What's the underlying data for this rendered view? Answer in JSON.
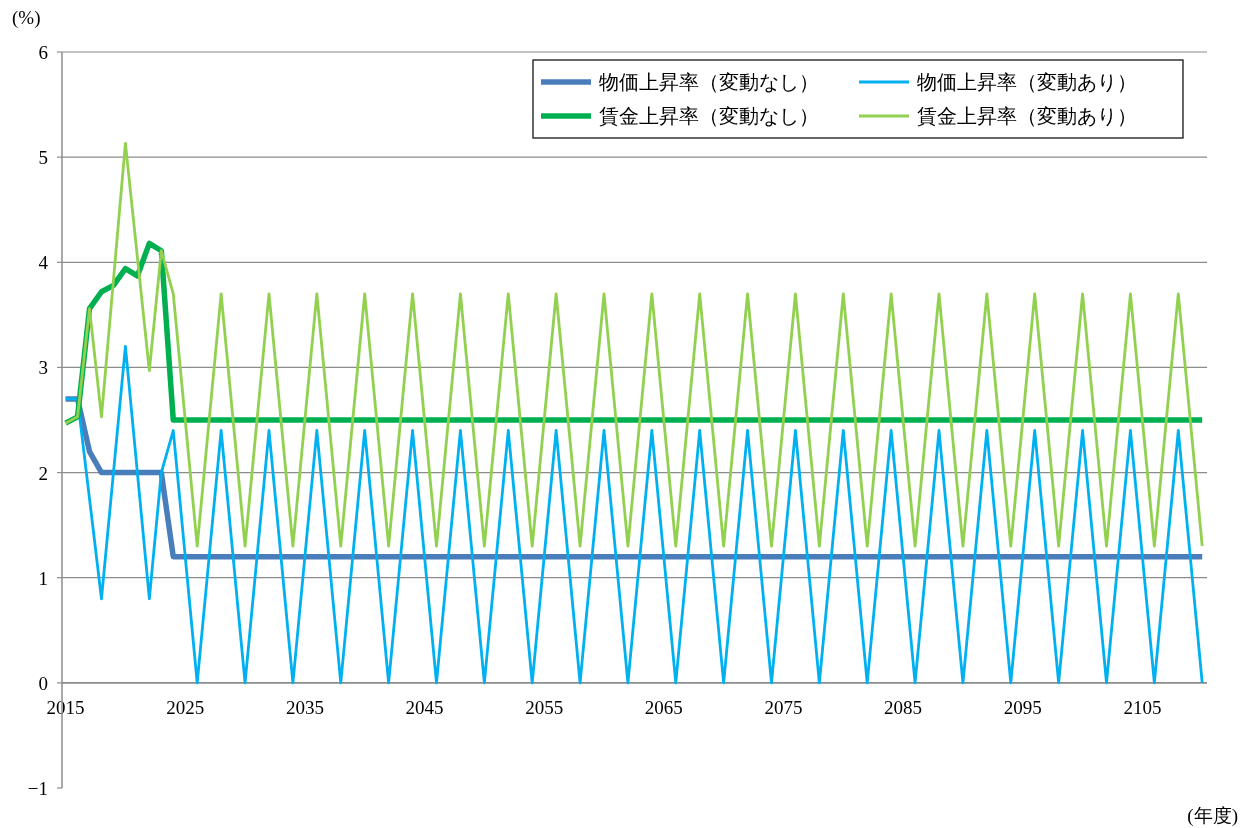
{
  "chart_data": {
    "type": "line",
    "ylabel": "(%)",
    "xlabel": "(年度)",
    "x": [
      2015,
      2016,
      2017,
      2018,
      2019,
      2020,
      2021,
      2022,
      2023,
      2024,
      2025,
      2026,
      2027,
      2028,
      2029,
      2030,
      2031,
      2032,
      2033,
      2034,
      2035,
      2036,
      2037,
      2038,
      2039,
      2040,
      2041,
      2042,
      2043,
      2044,
      2045,
      2046,
      2047,
      2048,
      2049,
      2050,
      2051,
      2052,
      2053,
      2054,
      2055,
      2056,
      2057,
      2058,
      2059,
      2060,
      2061,
      2062,
      2063,
      2064,
      2065,
      2066,
      2067,
      2068,
      2069,
      2070,
      2071,
      2072,
      2073,
      2074,
      2075,
      2076,
      2077,
      2078,
      2079,
      2080,
      2081,
      2082,
      2083,
      2084,
      2085,
      2086,
      2087,
      2088,
      2089,
      2090,
      2091,
      2092,
      2093,
      2094,
      2095,
      2096,
      2097,
      2098,
      2099,
      2100,
      2101,
      2102,
      2103,
      2104,
      2105,
      2106,
      2107,
      2108,
      2109,
      2110
    ],
    "xlim": [
      2014.7,
      2110.4
    ],
    "xticks": [
      2015,
      2025,
      2035,
      2045,
      2055,
      2065,
      2075,
      2085,
      2095,
      2105
    ],
    "ylim": [
      -1,
      6
    ],
    "yticks": [
      -1,
      0,
      1,
      2,
      3,
      4,
      5,
      6
    ],
    "grid": "y",
    "legend": "top right",
    "marker": "none",
    "line_style": "solid",
    "series": [
      {
        "name": "物価上昇率（変動なし）",
        "color": "#4a7ebb",
        "values": [
          2.7,
          2.7,
          2.2,
          2.0,
          2.0,
          2.0,
          2.0,
          2.0,
          2.0,
          1.2,
          1.2,
          1.2,
          1.2,
          1.2,
          1.2,
          1.2,
          1.2,
          1.2,
          1.2,
          1.2,
          1.2,
          1.2,
          1.2,
          1.2,
          1.2,
          1.2,
          1.2,
          1.2,
          1.2,
          1.2,
          1.2,
          1.2,
          1.2,
          1.2,
          1.2,
          1.2,
          1.2,
          1.2,
          1.2,
          1.2,
          1.2,
          1.2,
          1.2,
          1.2,
          1.2,
          1.2,
          1.2,
          1.2,
          1.2,
          1.2,
          1.2,
          1.2,
          1.2,
          1.2,
          1.2,
          1.2,
          1.2,
          1.2,
          1.2,
          1.2,
          1.2,
          1.2,
          1.2,
          1.2,
          1.2,
          1.2,
          1.2,
          1.2,
          1.2,
          1.2,
          1.2,
          1.2,
          1.2,
          1.2,
          1.2,
          1.2,
          1.2,
          1.2,
          1.2,
          1.2,
          1.2,
          1.2,
          1.2,
          1.2,
          1.2,
          1.2,
          1.2,
          1.2,
          1.2,
          1.2,
          1.2,
          1.2,
          1.2,
          1.2,
          1.2,
          1.2
        ]
      },
      {
        "name": "物価上昇率（変動あり）",
        "color": "#00b0f0",
        "values": [
          2.7,
          2.7,
          1.75,
          0.8,
          2.0,
          3.2,
          2.0,
          0.8,
          2.0,
          2.4,
          1.2,
          0,
          1.2,
          2.4,
          1.2,
          0,
          1.2,
          2.4,
          1.2,
          0,
          1.2,
          2.4,
          1.2,
          0,
          1.2,
          2.4,
          1.2,
          0,
          1.2,
          2.4,
          1.2,
          0,
          1.2,
          2.4,
          1.2,
          0,
          1.2,
          2.4,
          1.2,
          0,
          1.2,
          2.4,
          1.2,
          0,
          1.2,
          2.4,
          1.2,
          0,
          1.2,
          2.4,
          1.2,
          0,
          1.2,
          2.4,
          1.2,
          0,
          1.2,
          2.4,
          1.2,
          0,
          1.2,
          2.4,
          1.2,
          0,
          1.2,
          2.4,
          1.2,
          0,
          1.2,
          2.4,
          1.2,
          0,
          1.2,
          2.4,
          1.2,
          0,
          1.2,
          2.4,
          1.2,
          0,
          1.2,
          2.4,
          1.2,
          0,
          1.2,
          2.4,
          1.2,
          0,
          1.2,
          2.4,
          1.2,
          0,
          1.2,
          2.4,
          1.2,
          0
        ]
      },
      {
        "name": "賃金上昇率（変動なし）",
        "color": "#00b050",
        "values": [
          2.47,
          2.53,
          3.56,
          3.72,
          3.78,
          3.94,
          3.87,
          4.18,
          4.11,
          2.5,
          2.5,
          2.5,
          2.5,
          2.5,
          2.5,
          2.5,
          2.5,
          2.5,
          2.5,
          2.5,
          2.5,
          2.5,
          2.5,
          2.5,
          2.5,
          2.5,
          2.5,
          2.5,
          2.5,
          2.5,
          2.5,
          2.5,
          2.5,
          2.5,
          2.5,
          2.5,
          2.5,
          2.5,
          2.5,
          2.5,
          2.5,
          2.5,
          2.5,
          2.5,
          2.5,
          2.5,
          2.5,
          2.5,
          2.5,
          2.5,
          2.5,
          2.5,
          2.5,
          2.5,
          2.5,
          2.5,
          2.5,
          2.5,
          2.5,
          2.5,
          2.5,
          2.5,
          2.5,
          2.5,
          2.5,
          2.5,
          2.5,
          2.5,
          2.5,
          2.5,
          2.5,
          2.5,
          2.5,
          2.5,
          2.5,
          2.5,
          2.5,
          2.5,
          2.5,
          2.5,
          2.5,
          2.5,
          2.5,
          2.5,
          2.5,
          2.5,
          2.5,
          2.5,
          2.5,
          2.5,
          2.5,
          2.5,
          2.5,
          2.5,
          2.5,
          2.5
        ]
      },
      {
        "name": "賃金上昇率（変動あり）",
        "color": "#92d050",
        "values": [
          2.47,
          2.53,
          3.56,
          2.53,
          3.83,
          5.13,
          4.05,
          2.97,
          4.11,
          3.7,
          2.5,
          1.3,
          2.5,
          3.7,
          2.5,
          1.3,
          2.5,
          3.7,
          2.5,
          1.3,
          2.5,
          3.7,
          2.5,
          1.3,
          2.5,
          3.7,
          2.5,
          1.3,
          2.5,
          3.7,
          2.5,
          1.3,
          2.5,
          3.7,
          2.5,
          1.3,
          2.5,
          3.7,
          2.5,
          1.3,
          2.5,
          3.7,
          2.5,
          1.3,
          2.5,
          3.7,
          2.5,
          1.3,
          2.5,
          3.7,
          2.5,
          1.3,
          2.5,
          3.7,
          2.5,
          1.3,
          2.5,
          3.7,
          2.5,
          1.3,
          2.5,
          3.7,
          2.5,
          1.3,
          2.5,
          3.7,
          2.5,
          1.3,
          2.5,
          3.7,
          2.5,
          1.3,
          2.5,
          3.7,
          2.5,
          1.3,
          2.5,
          3.7,
          2.5,
          1.3,
          2.5,
          3.7,
          2.5,
          1.3,
          2.5,
          3.7,
          2.5,
          1.3,
          2.5,
          3.7,
          2.5,
          1.3,
          2.5,
          3.7,
          2.5,
          1.3
        ]
      }
    ]
  }
}
